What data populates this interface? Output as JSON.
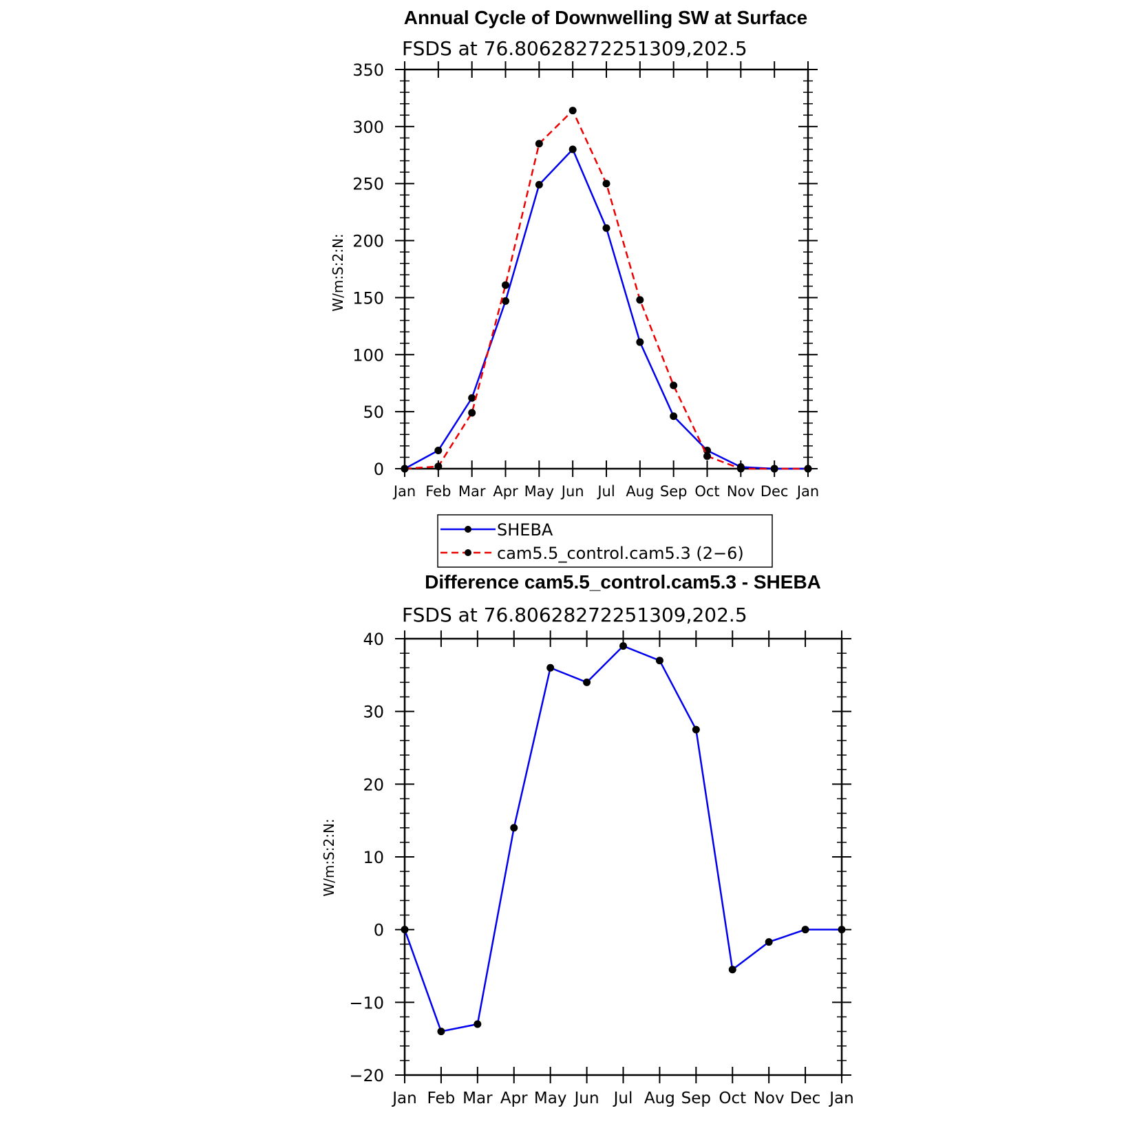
{
  "chart_data": [
    {
      "type": "line",
      "title": "Annual Cycle of Downwelling SW at Surface",
      "subtitle": "FSDS at 76.80628272251309,202.5",
      "ylabel": "W/m:S:2:N:",
      "xlabel": "",
      "categories": [
        "Jan",
        "Feb",
        "Mar",
        "Apr",
        "May",
        "Jun",
        "Jul",
        "Aug",
        "Sep",
        "Oct",
        "Nov",
        "Dec",
        "Jan"
      ],
      "ylim": [
        0,
        350
      ],
      "yticks": [
        "0",
        "50",
        "100",
        "150",
        "200",
        "250",
        "300",
        "350"
      ],
      "grid": false,
      "legend": "below",
      "series": [
        {
          "name": "SHEBA",
          "color": "#0000ee",
          "dash": "solid",
          "values": [
            0,
            16,
            62,
            147,
            249,
            280,
            211,
            111,
            46,
            16,
            1.5,
            0,
            0
          ]
        },
        {
          "name": "cam5.5_control.cam5.3 (2−6)",
          "color": "#ee0000",
          "dash": "dashed",
          "values": [
            0,
            2,
            49,
            161,
            285,
            314,
            250,
            148,
            73,
            11,
            0,
            0,
            0
          ]
        }
      ]
    },
    {
      "type": "line",
      "title": "Difference cam5.5_control.cam5.3 - SHEBA",
      "subtitle": "FSDS at 76.80628272251309,202.5",
      "ylabel": "W/m:S:2:N:",
      "xlabel": "",
      "categories": [
        "Jan",
        "Feb",
        "Mar",
        "Apr",
        "May",
        "Jun",
        "Jul",
        "Aug",
        "Sep",
        "Oct",
        "Nov",
        "Dec",
        "Jan"
      ],
      "ylim": [
        -20,
        40
      ],
      "yticks": [
        "−20",
        "−10",
        "0",
        "10",
        "20",
        "30",
        "40"
      ],
      "grid": false,
      "legend": "none",
      "series": [
        {
          "color": "#0000ee",
          "dash": "solid",
          "values": [
            0,
            -14,
            -13,
            14,
            36,
            34,
            39,
            37,
            27.5,
            -5.5,
            -1.7,
            0,
            0
          ]
        }
      ]
    }
  ]
}
